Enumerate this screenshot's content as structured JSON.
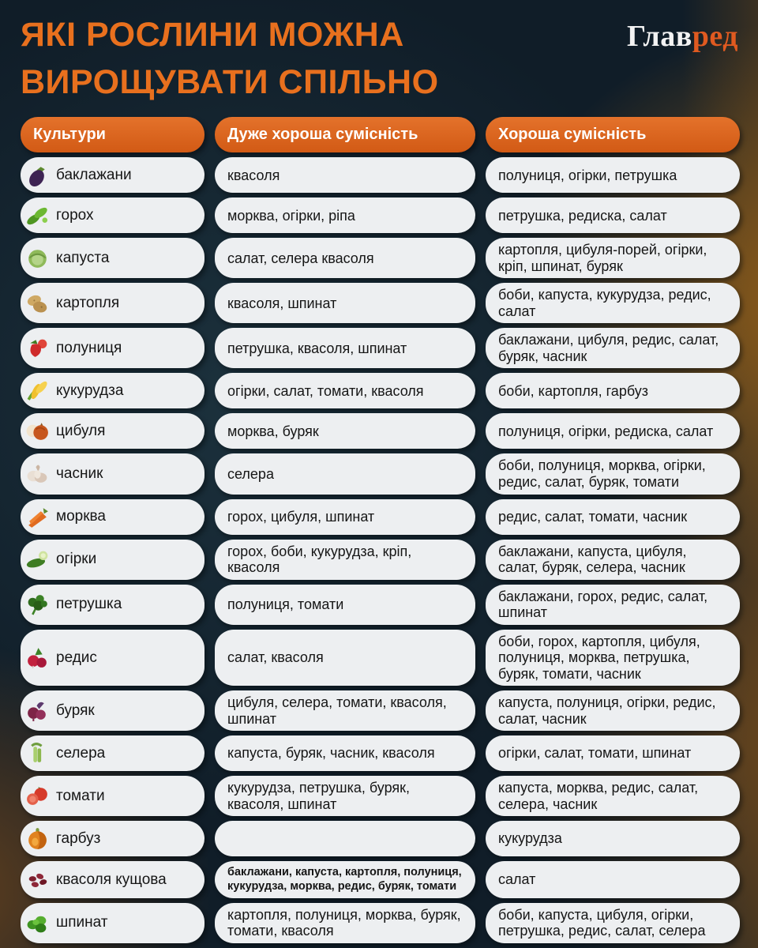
{
  "header": {
    "title_line1": "ЯКІ РОСЛИНИ МОЖНА",
    "title_line2": "ВИРОЩУВАТИ СПІЛЬНО",
    "logo_part1": "Глав",
    "logo_part2": "ред"
  },
  "colors": {
    "title_orange": "#E8701E",
    "header_pill_orange": "#D9611C",
    "pill_background": "#EDEFF1",
    "cell_text": "#161616",
    "page_background": "#101D28",
    "logo_white": "#F3F3F3",
    "logo_orange": "#E05A20"
  },
  "table": {
    "columns": [
      "Культури",
      "Дуже хороша сумісність",
      "Хороша сумісність"
    ],
    "rows": [
      {
        "icon": "eggplant",
        "crop": "баклажани",
        "very_good": "квасоля",
        "good": "полуниця, огірки, петрушка"
      },
      {
        "icon": "peas",
        "crop": "горох",
        "very_good": "морква, огірки, ріпа",
        "good": "петрушка, редиска, салат"
      },
      {
        "icon": "cabbage",
        "crop": "капуста",
        "very_good": "салат, селера квасоля",
        "good": "картопля, цибуля-порей, огірки, кріп, шпинат, буряк"
      },
      {
        "icon": "potato",
        "crop": "картопля",
        "very_good": "квасоля, шпинат",
        "good": "боби, капуста, кукурудза, редис, салат"
      },
      {
        "icon": "strawberry",
        "crop": "полуниця",
        "very_good": "петрушка, квасоля, шпинат",
        "good": "баклажани, цибуля, редис, салат, буряк, часник"
      },
      {
        "icon": "corn",
        "crop": "кукурудза",
        "very_good": "огірки, салат, томати, квасоля",
        "good": "боби, картопля, гарбуз"
      },
      {
        "icon": "onion",
        "crop": "цибуля",
        "very_good": "морква, буряк",
        "good": "полуниця, огірки, редиска, салат"
      },
      {
        "icon": "garlic",
        "crop": "часник",
        "very_good": "селера",
        "good": "боби, полуниця, морква, огірки, редис, салат, буряк, томати"
      },
      {
        "icon": "carrot",
        "crop": "морква",
        "very_good": "горох, цибуля, шпинат",
        "good": "редис, салат, томати, часник"
      },
      {
        "icon": "cucumber",
        "crop": "огірки",
        "very_good": "горох, боби, кукурудза, кріп, квасоля",
        "good": "баклажани, капуста, цибуля, салат, буряк, селера, часник"
      },
      {
        "icon": "parsley",
        "crop": "петрушка",
        "very_good": "полуниця, томати",
        "good": "баклажани, горох, редис, салат, шпинат"
      },
      {
        "icon": "radish",
        "crop": "редис",
        "very_good": "салат, квасоля",
        "good": "боби, горох, картопля, цибуля, полуниця, морква, петрушка, буряк, томати, часник"
      },
      {
        "icon": "beet",
        "crop": "буряк",
        "very_good": "цибуля, селера, томати, квасоля, шпинат",
        "good": "капуста, полуниця, огірки, редис, салат, часник"
      },
      {
        "icon": "celery",
        "crop": "селера",
        "very_good": "капуста, буряк, часник, квасоля",
        "good": "огірки, салат, томати, шпинат"
      },
      {
        "icon": "tomato",
        "crop": "томати",
        "very_good": "кукурудза, петрушка, буряк, квасоля, шпинат",
        "good": "капуста, морква, редис, салат, селера, часник"
      },
      {
        "icon": "pumpkin",
        "crop": "гарбуз",
        "very_good": "",
        "good": "кукурудза"
      },
      {
        "icon": "beans",
        "crop": "квасоля кущова",
        "very_good": "баклажани, капуста, картопля, полуниця, кукурудза, морква, редис, буряк, томати",
        "small_text": true,
        "good": "салат"
      },
      {
        "icon": "spinach",
        "crop": "шпинат",
        "very_good": "картопля, полуниця, морква, буряк, томати, квасоля",
        "good": "боби, капуста, цибуля, огірки, петрушка, редис, салат, селера"
      }
    ]
  }
}
